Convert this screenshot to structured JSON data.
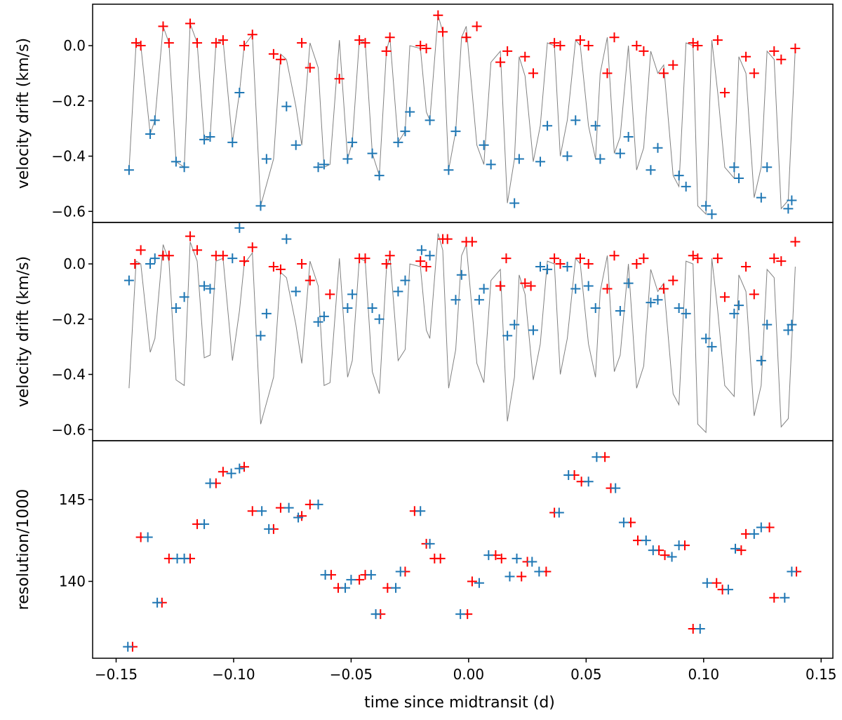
{
  "figure": {
    "xlabel": "time since midtransit (d)",
    "xlim": [
      -0.16,
      0.155
    ],
    "xticks": [
      -0.15,
      -0.1,
      -0.05,
      0.0,
      0.05,
      0.1,
      0.15
    ],
    "xtick_labels": [
      "−0.15",
      "−0.10",
      "−0.05",
      "0.00",
      "0.05",
      "0.10",
      "0.15"
    ]
  },
  "colors": {
    "red": "#ff0000",
    "blue": "#1f77b4",
    "model": "#808080",
    "axes": "#000000"
  },
  "chart_data": [
    {
      "type": "scatter",
      "panel": "top",
      "title": "",
      "ylabel": "velocity drift (km/s)",
      "ylim": [
        -0.64,
        0.15
      ],
      "yticks": [
        0.0,
        -0.2,
        -0.4,
        -0.6
      ],
      "ytick_labels": [
        "0.0",
        "−0.2",
        "−0.4",
        "−0.6"
      ],
      "grid": false,
      "model_line": {
        "x": [
          -0.1445,
          -0.1415,
          -0.1395,
          -0.1355,
          -0.1335,
          -0.13,
          -0.1275,
          -0.1245,
          -0.121,
          -0.1185,
          -0.1155,
          -0.1125,
          -0.11,
          -0.1075,
          -0.1045,
          -0.1005,
          -0.0975,
          -0.0955,
          -0.092,
          -0.0885,
          -0.083,
          -0.08,
          -0.0775,
          -0.0735,
          -0.071,
          -0.0675,
          -0.064,
          -0.0615,
          -0.059,
          -0.055,
          -0.0515,
          -0.0495,
          -0.0465,
          -0.044,
          -0.041,
          -0.038,
          -0.035,
          -0.0335,
          -0.03,
          -0.027,
          -0.025,
          -0.0205,
          -0.018,
          -0.0165,
          -0.013,
          -0.011,
          -0.0085,
          -0.0055,
          -0.003,
          -0.001,
          0.0035,
          0.0065,
          0.0095,
          0.0135,
          0.0165,
          0.0195,
          0.0215,
          0.024,
          0.0275,
          0.0305,
          0.0335,
          0.0365,
          0.039,
          0.042,
          0.0455,
          0.0475,
          0.051,
          0.054,
          0.056,
          0.059,
          0.062,
          0.0645,
          0.068,
          0.0715,
          0.0745,
          0.0775,
          0.0805,
          0.083,
          0.087,
          0.0895,
          0.0925,
          0.0955,
          0.0975,
          0.101,
          0.1035,
          0.106,
          0.109,
          0.113,
          0.115,
          0.118,
          0.1215,
          0.1245,
          0.127,
          0.13,
          0.133,
          0.136,
          0.139
        ],
        "y": [
          -0.45,
          0.01,
          0.0,
          -0.32,
          -0.27,
          0.07,
          0.01,
          -0.42,
          -0.44,
          0.08,
          0.01,
          -0.34,
          -0.33,
          0.01,
          0.02,
          -0.35,
          -0.17,
          0.0,
          0.04,
          -0.58,
          -0.41,
          -0.03,
          -0.05,
          -0.22,
          -0.36,
          0.01,
          -0.08,
          -0.44,
          -0.43,
          0.02,
          -0.41,
          -0.35,
          0.02,
          0.01,
          -0.39,
          -0.47,
          -0.02,
          0.03,
          -0.35,
          -0.31,
          0.0,
          -0.01,
          -0.24,
          -0.27,
          0.11,
          0.05,
          -0.45,
          -0.31,
          0.03,
          0.07,
          -0.36,
          -0.43,
          -0.06,
          -0.02,
          -0.57,
          -0.41,
          -0.04,
          -0.11,
          -0.42,
          -0.29,
          0.01,
          0.0,
          -0.4,
          -0.27,
          0.02,
          0.0,
          -0.29,
          -0.41,
          -0.1,
          0.03,
          -0.39,
          -0.33,
          0.0,
          -0.45,
          -0.37,
          -0.02,
          -0.1,
          -0.07,
          -0.47,
          -0.51,
          0.01,
          0.0,
          -0.58,
          -0.61,
          0.02,
          -0.17,
          -0.44,
          -0.48,
          -0.04,
          -0.1,
          -0.55,
          -0.44,
          -0.02,
          -0.05,
          -0.59,
          -0.56,
          -0.01
        ]
      },
      "series": [
        {
          "color": "red",
          "x": [
            -0.1415,
            -0.1395,
            -0.13,
            -0.1275,
            -0.1185,
            -0.1155,
            -0.1075,
            -0.1045,
            -0.0955,
            -0.092,
            -0.083,
            -0.08,
            -0.071,
            -0.0675,
            -0.055,
            -0.0465,
            -0.044,
            -0.035,
            -0.0335,
            -0.0205,
            -0.018,
            -0.013,
            -0.011,
            -0.001,
            0.0035,
            0.0135,
            0.0165,
            0.024,
            0.0275,
            0.0365,
            0.039,
            0.0475,
            0.051,
            0.059,
            0.062,
            0.0715,
            0.0745,
            0.083,
            0.087,
            0.0955,
            0.0975,
            0.106,
            0.109,
            0.118,
            0.1215,
            0.13,
            0.133,
            0.139
          ],
          "y": [
            0.01,
            0.0,
            0.07,
            0.01,
            0.08,
            0.01,
            0.01,
            0.02,
            0.0,
            0.04,
            -0.03,
            -0.05,
            0.01,
            -0.08,
            -0.12,
            0.02,
            0.01,
            -0.02,
            0.03,
            0.0,
            -0.01,
            0.11,
            0.05,
            0.03,
            0.07,
            -0.06,
            -0.02,
            -0.04,
            -0.1,
            0.01,
            0.0,
            0.02,
            0.0,
            -0.1,
            0.03,
            0.0,
            -0.02,
            -0.1,
            -0.07,
            0.01,
            0.0,
            0.02,
            -0.17,
            -0.04,
            -0.1,
            -0.02,
            -0.05,
            -0.01
          ]
        },
        {
          "color": "blue",
          "x": [
            -0.1445,
            -0.1355,
            -0.1335,
            -0.1245,
            -0.121,
            -0.1125,
            -0.11,
            -0.1005,
            -0.0975,
            -0.0885,
            -0.086,
            -0.0775,
            -0.0735,
            -0.064,
            -0.0615,
            -0.0515,
            -0.0495,
            -0.041,
            -0.038,
            -0.03,
            -0.027,
            -0.025,
            -0.0165,
            -0.0085,
            -0.0055,
            0.0065,
            0.0095,
            0.0195,
            0.0215,
            0.0305,
            0.0335,
            0.042,
            0.0455,
            0.054,
            0.056,
            0.0645,
            0.068,
            0.0775,
            0.0805,
            0.0895,
            0.0925,
            0.101,
            0.1035,
            0.113,
            0.115,
            0.1245,
            0.127,
            0.136,
            0.1375
          ],
          "y": [
            -0.45,
            -0.32,
            -0.27,
            -0.42,
            -0.44,
            -0.34,
            -0.33,
            -0.35,
            -0.17,
            -0.58,
            -0.41,
            -0.22,
            -0.36,
            -0.44,
            -0.43,
            -0.41,
            -0.35,
            -0.39,
            -0.47,
            -0.35,
            -0.31,
            -0.24,
            -0.27,
            -0.45,
            -0.31,
            -0.36,
            -0.43,
            -0.57,
            -0.41,
            -0.42,
            -0.29,
            -0.4,
            -0.27,
            -0.29,
            -0.41,
            -0.39,
            -0.33,
            -0.45,
            -0.37,
            -0.47,
            -0.51,
            -0.58,
            -0.61,
            -0.44,
            -0.48,
            -0.55,
            -0.44,
            -0.59,
            -0.56
          ]
        }
      ]
    },
    {
      "type": "scatter",
      "panel": "middle",
      "title": "",
      "ylabel": "velocity drift (km/s)",
      "ylim": [
        -0.64,
        0.15
      ],
      "yticks": [
        0.0,
        -0.2,
        -0.4,
        -0.6
      ],
      "ytick_labels": [
        "0.0",
        "−0.2",
        "−0.4",
        "−0.6"
      ],
      "grid": false,
      "model_line_same_as_panel": "top",
      "series": [
        {
          "color": "red",
          "x": [
            -0.142,
            -0.1395,
            -0.13,
            -0.1275,
            -0.1185,
            -0.1155,
            -0.1075,
            -0.1045,
            -0.0955,
            -0.092,
            -0.083,
            -0.08,
            -0.071,
            -0.0675,
            -0.059,
            -0.0465,
            -0.044,
            -0.035,
            -0.0335,
            -0.0205,
            -0.018,
            -0.011,
            -0.009,
            -0.001,
            0.0015,
            0.0135,
            0.016,
            0.024,
            0.0265,
            0.0365,
            0.039,
            0.0475,
            0.051,
            0.059,
            0.062,
            0.0715,
            0.0745,
            0.083,
            0.087,
            0.0955,
            0.0975,
            0.106,
            0.109,
            0.118,
            0.1215,
            0.13,
            0.133,
            0.139
          ],
          "y": [
            0.0,
            0.05,
            0.03,
            0.03,
            0.1,
            0.05,
            0.03,
            0.03,
            0.01,
            0.06,
            -0.01,
            -0.02,
            0.0,
            -0.06,
            -0.11,
            0.02,
            0.02,
            0.0,
            0.03,
            0.01,
            -0.01,
            0.09,
            0.09,
            0.08,
            0.08,
            -0.08,
            0.02,
            -0.07,
            -0.08,
            0.02,
            0.0,
            0.02,
            0.0,
            -0.09,
            0.03,
            0.0,
            0.02,
            -0.09,
            -0.06,
            0.03,
            0.02,
            0.02,
            -0.12,
            -0.01,
            -0.11,
            0.02,
            0.01,
            0.08
          ]
        },
        {
          "color": "blue",
          "x": [
            -0.1445,
            -0.1355,
            -0.1335,
            -0.1245,
            -0.121,
            -0.1125,
            -0.11,
            -0.1005,
            -0.0975,
            -0.0885,
            -0.086,
            -0.0775,
            -0.0735,
            -0.064,
            -0.0615,
            -0.0515,
            -0.0495,
            -0.041,
            -0.038,
            -0.03,
            -0.027,
            -0.02,
            -0.0165,
            -0.0055,
            -0.003,
            0.0045,
            0.0065,
            0.0165,
            0.0195,
            0.0275,
            0.0305,
            0.0335,
            0.042,
            0.0455,
            0.051,
            0.054,
            0.0645,
            0.068,
            0.0775,
            0.0805,
            0.0895,
            0.0925,
            0.101,
            0.1035,
            0.113,
            0.115,
            0.1245,
            0.127,
            0.136,
            0.1375
          ],
          "y": [
            -0.06,
            0.0,
            0.02,
            -0.16,
            -0.12,
            -0.08,
            -0.09,
            0.02,
            0.13,
            -0.26,
            -0.18,
            0.09,
            -0.1,
            -0.21,
            -0.19,
            -0.16,
            -0.11,
            -0.16,
            -0.2,
            -0.1,
            -0.06,
            0.05,
            0.03,
            -0.13,
            -0.04,
            -0.13,
            -0.09,
            -0.26,
            -0.22,
            -0.24,
            -0.01,
            -0.02,
            -0.01,
            -0.09,
            -0.08,
            -0.16,
            -0.17,
            -0.07,
            -0.14,
            -0.13,
            -0.16,
            -0.18,
            -0.27,
            -0.3,
            -0.18,
            -0.15,
            -0.35,
            -0.22,
            -0.24,
            -0.22
          ]
        }
      ]
    },
    {
      "type": "scatter",
      "panel": "bottom",
      "title": "",
      "ylabel": "resolution/1000",
      "ylim": [
        135.3,
        148.6
      ],
      "yticks": [
        140,
        145
      ],
      "ytick_labels": [
        "140",
        "145"
      ],
      "grid": false,
      "series": [
        {
          "color": "red",
          "x": [
            -0.143,
            -0.1395,
            -0.1305,
            -0.1275,
            -0.1185,
            -0.1155,
            -0.1075,
            -0.1045,
            -0.0955,
            -0.092,
            -0.083,
            -0.08,
            -0.071,
            -0.0675,
            -0.0585,
            -0.0555,
            -0.0465,
            -0.044,
            -0.0375,
            -0.0345,
            -0.027,
            -0.023,
            -0.018,
            -0.0145,
            -0.012,
            -0.0005,
            0.0015,
            0.0115,
            0.014,
            0.0225,
            0.025,
            0.033,
            0.0365,
            0.045,
            0.048,
            0.058,
            0.0605,
            0.069,
            0.072,
            0.081,
            0.0835,
            0.092,
            0.0955,
            0.1055,
            0.108,
            0.116,
            0.118,
            0.128,
            0.13,
            0.1395
          ],
          "y": [
            136.0,
            142.7,
            138.7,
            141.4,
            141.4,
            143.5,
            146.0,
            146.7,
            147.0,
            144.3,
            143.2,
            144.5,
            144.0,
            144.7,
            140.4,
            139.6,
            140.1,
            140.4,
            138.0,
            139.6,
            140.6,
            144.3,
            142.3,
            141.4,
            141.4,
            138.0,
            140.0,
            141.6,
            141.4,
            140.3,
            141.2,
            140.6,
            144.2,
            146.5,
            146.1,
            147.6,
            145.7,
            143.6,
            142.5,
            141.9,
            141.6,
            142.2,
            137.1,
            139.9,
            139.5,
            141.9,
            142.9,
            143.3,
            139.0,
            140.6
          ]
        },
        {
          "color": "blue",
          "x": [
            -0.145,
            -0.1365,
            -0.1325,
            -0.124,
            -0.121,
            -0.1125,
            -0.11,
            -0.101,
            -0.0975,
            -0.088,
            -0.085,
            -0.0765,
            -0.0725,
            -0.064,
            -0.061,
            -0.0525,
            -0.05,
            -0.0415,
            -0.0395,
            -0.031,
            -0.029,
            -0.0205,
            -0.0165,
            -0.0035,
            0.0045,
            0.0085,
            0.0175,
            0.0205,
            0.027,
            0.03,
            0.0385,
            0.0425,
            0.051,
            0.0545,
            0.0625,
            0.066,
            0.0755,
            0.0785,
            0.0865,
            0.0895,
            0.0985,
            0.1015,
            0.1105,
            0.1135,
            0.1215,
            0.1245,
            0.1345,
            0.1375
          ],
          "y": [
            136.0,
            142.7,
            138.7,
            141.4,
            141.4,
            143.5,
            146.0,
            146.6,
            146.9,
            144.3,
            143.2,
            144.5,
            143.9,
            144.7,
            140.4,
            139.6,
            140.1,
            140.4,
            138.0,
            139.6,
            140.6,
            144.3,
            142.3,
            138.0,
            139.9,
            141.6,
            140.3,
            141.4,
            141.2,
            140.6,
            144.2,
            146.5,
            146.1,
            147.6,
            145.7,
            143.6,
            142.5,
            141.9,
            141.5,
            142.2,
            137.1,
            139.9,
            139.5,
            142.0,
            142.9,
            143.3,
            139.0,
            140.6
          ]
        }
      ]
    }
  ]
}
